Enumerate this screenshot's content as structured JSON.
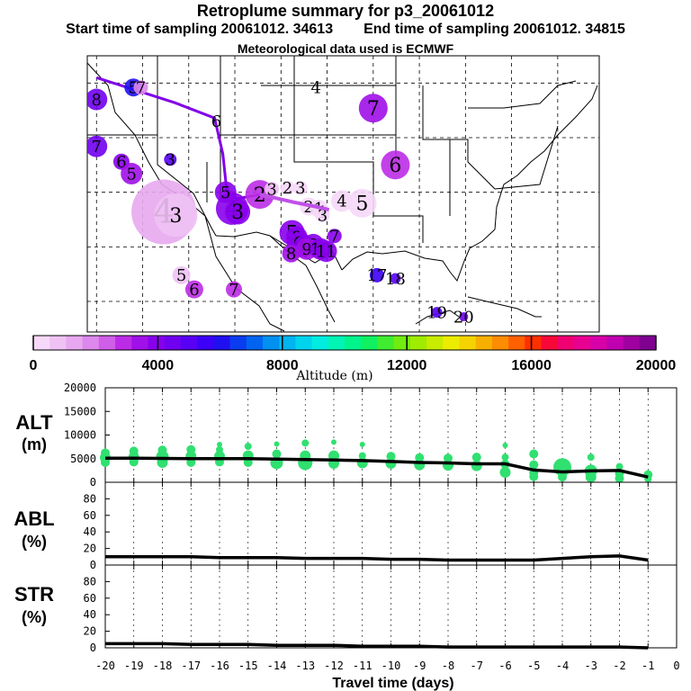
{
  "title": "Retroplume summary for p3_20061012",
  "subtitle": {
    "start": "Start time of sampling 20061012. 34613",
    "end": "End time of sampling 20061012. 34815"
  },
  "met_note": "Meteorological data used is ECMWF",
  "colorbar": {
    "label": "Altitude (m)",
    "min": 0,
    "max": 20000,
    "ticks": [
      "0",
      "4000",
      "8000",
      "12000",
      "16000",
      "20000"
    ],
    "colors": [
      "#f6d8f8",
      "#f0c2f4",
      "#e8a8f0",
      "#dd88ec",
      "#cf5ee8",
      "#bc2ce6",
      "#a010e8",
      "#8800ec",
      "#7000f0",
      "#5800f4",
      "#3c00f8",
      "#2010f0",
      "#0a3cf0",
      "#0064f0",
      "#0090f0",
      "#00b4f0",
      "#00d4ec",
      "#00ece0",
      "#00f4b4",
      "#00f48c",
      "#10f060",
      "#40ec30",
      "#70ec10",
      "#a0ec00",
      "#c8ec00",
      "#ecec00",
      "#f4d400",
      "#f8b000",
      "#fc8c00",
      "#ff6000",
      "#ff3000",
      "#f80838",
      "#f00070",
      "#e80090",
      "#d800a8",
      "#c000b0",
      "#a000a0",
      "#800090"
    ]
  },
  "map": {
    "markers": [
      {
        "label": "4",
        "alt": 1500,
        "size": 36,
        "lon": -117.7,
        "lat": 33.2
      },
      {
        "label": "3",
        "alt": 800,
        "size": 24,
        "lon": -116.4,
        "lat": 32.9
      },
      {
        "label": "4",
        "alt": 3800,
        "size": 18,
        "lon": -110.3,
        "lat": 33.5
      },
      {
        "label": "3",
        "alt": 3800,
        "size": 14,
        "lon": -109.7,
        "lat": 33.2
      },
      {
        "label": "5",
        "alt": 3800,
        "size": 12,
        "lon": -111.0,
        "lat": 35.0
      },
      {
        "label": "2",
        "alt": 3000,
        "size": 16,
        "lon": -107.3,
        "lat": 34.8
      },
      {
        "label": "3",
        "alt": 600,
        "size": 8,
        "lon": -106.0,
        "lat": 35.3
      },
      {
        "label": "2",
        "alt": 400,
        "size": 8,
        "lon": -104.3,
        "lat": 35.4
      },
      {
        "label": "3",
        "alt": 300,
        "size": 8,
        "lon": -102.9,
        "lat": 35.4
      },
      {
        "label": "2",
        "alt": 500,
        "size": 10,
        "lon": -102.0,
        "lat": 33.7
      },
      {
        "label": "1",
        "alt": 400,
        "size": 10,
        "lon": -100.9,
        "lat": 33.5
      },
      {
        "label": "1",
        "alt": 400,
        "size": 8,
        "lon": -100.5,
        "lat": 33.2
      },
      {
        "label": "3",
        "alt": 400,
        "size": 8,
        "lon": -100.5,
        "lat": 32.9
      },
      {
        "label": "4",
        "alt": 300,
        "size": 12,
        "lon": -98.4,
        "lat": 34.2
      },
      {
        "label": "5",
        "alt": 300,
        "size": 16,
        "lon": -96.2,
        "lat": 34.0
      },
      {
        "label": "7",
        "alt": 3600,
        "size": 16,
        "lon": -95.0,
        "lat": 42.7
      },
      {
        "label": "6",
        "alt": 2800,
        "size": 16,
        "lon": -92.6,
        "lat": 37.5
      },
      {
        "label": "5",
        "alt": 4200,
        "size": 14,
        "lon": -103.8,
        "lat": 31.3
      },
      {
        "label": "8",
        "alt": 4000,
        "size": 12,
        "lon": -103.3,
        "lat": 30.9
      },
      {
        "label": "8",
        "alt": 4000,
        "size": 10,
        "lon": -102.8,
        "lat": 30.5
      },
      {
        "label": "9",
        "alt": 4200,
        "size": 14,
        "lon": -103.0,
        "lat": 30.2
      },
      {
        "label": "9",
        "alt": 4000,
        "size": 12,
        "lon": -102.4,
        "lat": 30.1
      },
      {
        "label": "8",
        "alt": 4000,
        "size": 12,
        "lon": -101.5,
        "lat": 30.2
      },
      {
        "label": "9",
        "alt": 3600,
        "size": 12,
        "lon": -102.2,
        "lat": 29.8
      },
      {
        "label": "10",
        "alt": 4000,
        "size": 12,
        "lon": -100.7,
        "lat": 29.8
      },
      {
        "label": "11",
        "alt": 4000,
        "size": 12,
        "lon": -100.1,
        "lat": 29.6
      },
      {
        "label": "8",
        "alt": 3600,
        "size": 10,
        "lon": -103.9,
        "lat": 29.4
      },
      {
        "label": "7",
        "alt": 4000,
        "size": 8,
        "lon": -99.2,
        "lat": 31.0
      },
      {
        "label": "17",
        "alt": 5400,
        "size": 8,
        "lon": -94.6,
        "lat": 27.4
      },
      {
        "label": "18",
        "alt": 5000,
        "size": 6,
        "lon": -92.6,
        "lat": 27.1
      },
      {
        "label": "19",
        "alt": 5000,
        "size": 6,
        "lon": -88.1,
        "lat": 24.0
      },
      {
        "label": "20",
        "alt": 4400,
        "size": 5,
        "lon": -85.2,
        "lat": 23.6
      },
      {
        "label": "5",
        "alt": 900,
        "size": 10,
        "lon": -115.8,
        "lat": 27.4
      },
      {
        "label": "6",
        "alt": 3000,
        "size": 10,
        "lon": -114.4,
        "lat": 26.1
      },
      {
        "label": "7",
        "alt": 3000,
        "size": 9,
        "lon": -110.1,
        "lat": 26.1
      },
      {
        "label": "5",
        "alt": 6200,
        "size": 10,
        "lon": -121.0,
        "lat": 44.6
      },
      {
        "label": "7",
        "alt": 1800,
        "size": 8,
        "lon": -120.2,
        "lat": 44.6
      },
      {
        "label": "8",
        "alt": 4400,
        "size": 12,
        "lon": -125.0,
        "lat": 43.5
      },
      {
        "label": "7",
        "alt": 4400,
        "size": 12,
        "lon": -125.0,
        "lat": 39.2
      },
      {
        "label": "6",
        "alt": 3800,
        "size": 9,
        "lon": -122.3,
        "lat": 37.8
      },
      {
        "label": "5",
        "alt": 3400,
        "size": 12,
        "lon": -121.2,
        "lat": 36.7
      },
      {
        "label": "3",
        "alt": 5200,
        "size": 7,
        "lon": -117.0,
        "lat": 38.0
      },
      {
        "label": "6",
        "alt": 0,
        "size": 0,
        "lon": -112.0,
        "lat": 41.5
      },
      {
        "label": "4",
        "alt": 0,
        "size": 0,
        "lon": -101.2,
        "lat": 44.6
      }
    ],
    "track": [
      {
        "lon": -125.0,
        "lat": 45.5
      },
      {
        "lon": -116.5,
        "lat": 43.2
      },
      {
        "lon": -112.2,
        "lat": 41.8
      },
      {
        "lon": -111.3,
        "lat": 38.5
      },
      {
        "lon": -110.9,
        "lat": 35.3
      },
      {
        "lon": -109.8,
        "lat": 34.4
      },
      {
        "lon": -107.3,
        "lat": 34.8
      },
      {
        "lon": -103.7,
        "lat": 34.1
      },
      {
        "lon": -101.3,
        "lat": 33.7
      },
      {
        "lon": -99.8,
        "lat": 33.4
      }
    ],
    "track_color": "#8000e8",
    "track_colors_late": "#c050e8",
    "grid_lons": [
      -125,
      -120,
      -115,
      -110,
      -105,
      -100,
      -95,
      -90,
      -85,
      -80,
      -75,
      -70
    ],
    "grid_lats": [
      25,
      30,
      35,
      40,
      45
    ]
  },
  "panels": {
    "alt": {
      "label": "ALT",
      "unit": "(m)",
      "ylim": [
        0,
        20000
      ],
      "ticks": [
        "20000",
        "15000",
        "10000",
        "5000",
        "0"
      ]
    },
    "abl": {
      "label": "ABL",
      "unit": "(%)",
      "ylim": [
        0,
        100
      ],
      "ticks": [
        "80",
        "60",
        "40",
        "20",
        "0"
      ]
    },
    "str": {
      "label": "STR",
      "unit": "(%)",
      "ylim": [
        0,
        100
      ],
      "ticks": [
        "80",
        "60",
        "40",
        "20",
        "0"
      ]
    },
    "xlabel": "Travel time (days)",
    "xticks": [
      "-20",
      "-19",
      "-18",
      "-17",
      "-16",
      "-15",
      "-14",
      "-13",
      "-12",
      "-11",
      "-10",
      "-9",
      "-8",
      "-7",
      "-6",
      "-5",
      "-4",
      "-3",
      "-2",
      "-1",
      "0"
    ]
  },
  "chart_data": {
    "type": "line",
    "title": "Retroplume summary for p3_20061012",
    "xlabel": "Travel time (days)",
    "x": [
      -20,
      -19,
      -18,
      -17,
      -16,
      -15,
      -14,
      -13,
      -12,
      -11,
      -10,
      -9,
      -8,
      -7,
      -6,
      -5,
      -4,
      -3,
      -2,
      -1
    ],
    "series": [
      {
        "name": "ALT (m)",
        "values": [
          5100,
          5100,
          5050,
          5000,
          5000,
          5000,
          4900,
          4800,
          4700,
          4600,
          4400,
          4200,
          4100,
          3900,
          3900,
          2600,
          2200,
          2400,
          2500,
          1100
        ]
      },
      {
        "name": "ABL (%)",
        "values": [
          10,
          10,
          10,
          10,
          9,
          9,
          9,
          8,
          8,
          8,
          7,
          7,
          6,
          6,
          6,
          6,
          8,
          10,
          11,
          6
        ]
      },
      {
        "name": "STR (%)",
        "values": [
          5,
          5,
          5,
          4,
          4,
          4,
          3,
          3,
          3,
          2,
          2,
          2,
          1,
          1,
          1,
          1,
          1,
          1,
          1,
          0
        ]
      }
    ],
    "alt_clusters": [
      {
        "x": -20,
        "points": [
          [
            6200,
            5
          ],
          [
            5200,
            6
          ],
          [
            4200,
            5
          ]
        ]
      },
      {
        "x": -19,
        "points": [
          [
            6600,
            5
          ],
          [
            5300,
            6
          ],
          [
            4300,
            5
          ]
        ]
      },
      {
        "x": -18,
        "points": [
          [
            6800,
            5
          ],
          [
            5400,
            7
          ],
          [
            4200,
            6
          ]
        ]
      },
      {
        "x": -17,
        "points": [
          [
            6900,
            5
          ],
          [
            5500,
            6
          ],
          [
            4200,
            5
          ]
        ]
      },
      {
        "x": -16,
        "points": [
          [
            8000,
            3
          ],
          [
            6900,
            4
          ],
          [
            5500,
            6
          ],
          [
            4300,
            5
          ]
        ]
      },
      {
        "x": -15,
        "points": [
          [
            7600,
            4
          ],
          [
            5600,
            6
          ],
          [
            4200,
            5
          ]
        ]
      },
      {
        "x": -14,
        "points": [
          [
            8100,
            3
          ],
          [
            6000,
            5
          ],
          [
            4100,
            7
          ]
        ]
      },
      {
        "x": -13,
        "points": [
          [
            8300,
            4
          ],
          [
            5600,
            6
          ],
          [
            4100,
            8
          ]
        ]
      },
      {
        "x": -12,
        "points": [
          [
            8500,
            3
          ],
          [
            5600,
            6
          ],
          [
            4000,
            6
          ]
        ]
      },
      {
        "x": -11,
        "points": [
          [
            8000,
            3
          ],
          [
            5600,
            4
          ],
          [
            4100,
            6
          ]
        ]
      },
      {
        "x": -10,
        "points": [
          [
            5500,
            5
          ],
          [
            4000,
            6
          ]
        ]
      },
      {
        "x": -9,
        "points": [
          [
            5200,
            5
          ],
          [
            3700,
            6
          ]
        ]
      },
      {
        "x": -8,
        "points": [
          [
            5100,
            5
          ],
          [
            3600,
            6
          ]
        ]
      },
      {
        "x": -7,
        "points": [
          [
            5300,
            5
          ],
          [
            3500,
            6
          ]
        ]
      },
      {
        "x": -6,
        "points": [
          [
            7800,
            3
          ],
          [
            5300,
            4
          ],
          [
            3800,
            5
          ],
          [
            2100,
            6
          ]
        ]
      },
      {
        "x": -5,
        "points": [
          [
            6000,
            5
          ],
          [
            3700,
            5
          ],
          [
            2000,
            5
          ],
          [
            1200,
            5
          ]
        ]
      },
      {
        "x": -4,
        "points": [
          [
            3200,
            10
          ],
          [
            2200,
            6
          ],
          [
            1100,
            5
          ]
        ]
      },
      {
        "x": -3,
        "points": [
          [
            5300,
            4
          ],
          [
            2400,
            7
          ],
          [
            1100,
            6
          ]
        ]
      },
      {
        "x": -2,
        "points": [
          [
            3300,
            4
          ],
          [
            1900,
            5
          ],
          [
            800,
            5
          ]
        ]
      },
      {
        "x": -1,
        "points": [
          [
            1600,
            5
          ],
          [
            700,
            4
          ]
        ]
      }
    ]
  }
}
